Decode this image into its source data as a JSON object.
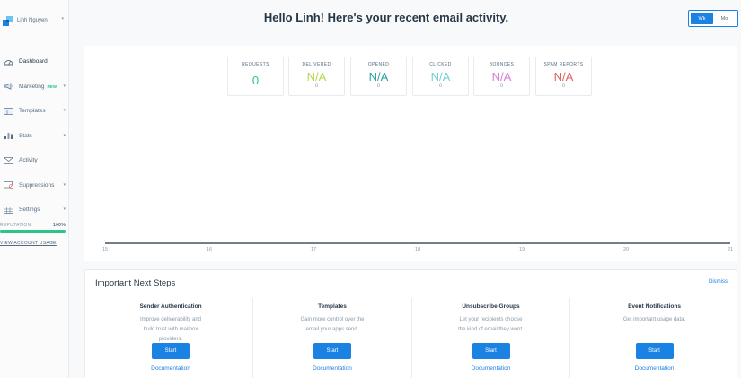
{
  "account": {
    "name": "Linh Nguyen"
  },
  "sidebar": {
    "items": [
      {
        "label": "Dashboard",
        "icon": "dashboard-icon",
        "active": true,
        "badge": "",
        "caret": false
      },
      {
        "label": "Marketing",
        "icon": "megaphone-icon",
        "active": false,
        "badge": "NEW",
        "caret": true
      },
      {
        "label": "Templates",
        "icon": "templates-icon",
        "active": false,
        "badge": "",
        "caret": true
      },
      {
        "label": "Stats",
        "icon": "stats-icon",
        "active": false,
        "badge": "",
        "caret": true
      },
      {
        "label": "Activity",
        "icon": "mail-icon",
        "active": false,
        "badge": "",
        "caret": false
      },
      {
        "label": "Suppressions",
        "icon": "suppressions-icon",
        "active": false,
        "badge": "",
        "caret": true
      },
      {
        "label": "Settings",
        "icon": "settings-icon",
        "active": false,
        "badge": "",
        "caret": true
      }
    ],
    "reputation": {
      "label": "REPUTATION",
      "value": "100%",
      "fraction": 1.0
    },
    "view_usage": "VIEW ACCOUNT USAGE"
  },
  "header": {
    "title": "Hello Linh! Here's your recent email activity.",
    "toggle": {
      "week": "Wk",
      "month": "Mo",
      "selected": "Wk"
    }
  },
  "stats": [
    {
      "label": "REQUESTS",
      "value": "0",
      "sub": "",
      "color": "#2bc48a"
    },
    {
      "label": "DELIVERED",
      "value": "N/A",
      "sub": "0",
      "color": "#b5d84a"
    },
    {
      "label": "OPENED",
      "value": "N/A",
      "sub": "0",
      "color": "#26a2a6"
    },
    {
      "label": "CLICKED",
      "value": "N/A",
      "sub": "0",
      "color": "#6fcfd8"
    },
    {
      "label": "BOUNCES",
      "value": "N/A",
      "sub": "0",
      "color": "#d77bd4"
    },
    {
      "label": "SPAM REPORTS",
      "value": "N/A",
      "sub": "0",
      "color": "#e06060"
    }
  ],
  "chart_data": {
    "type": "line",
    "x": [
      "15",
      "16",
      "17",
      "18",
      "19",
      "20",
      "21"
    ],
    "series": [
      {
        "values": [
          0,
          0,
          0,
          0,
          0,
          0,
          0
        ],
        "color": "#263746"
      }
    ]
  },
  "next_steps": {
    "title": "Important Next Steps",
    "dismiss": "Dismiss",
    "items": [
      {
        "title": "Sender Authentication",
        "description": "Improve deliverability and build trust with mailbox providers.",
        "button": "Start",
        "link": "Documentation"
      },
      {
        "title": "Templates",
        "description": "Gain more control over the email your apps send.",
        "button": "Start",
        "link": "Documentation"
      },
      {
        "title": "Unsubscribe Groups",
        "description": "Let your recipients choose the kind of email they want.",
        "button": "Start",
        "link": "Documentation"
      },
      {
        "title": "Event Notifications",
        "description": "Get important usage data.",
        "button": "Start",
        "link": "Documentation"
      }
    ]
  }
}
